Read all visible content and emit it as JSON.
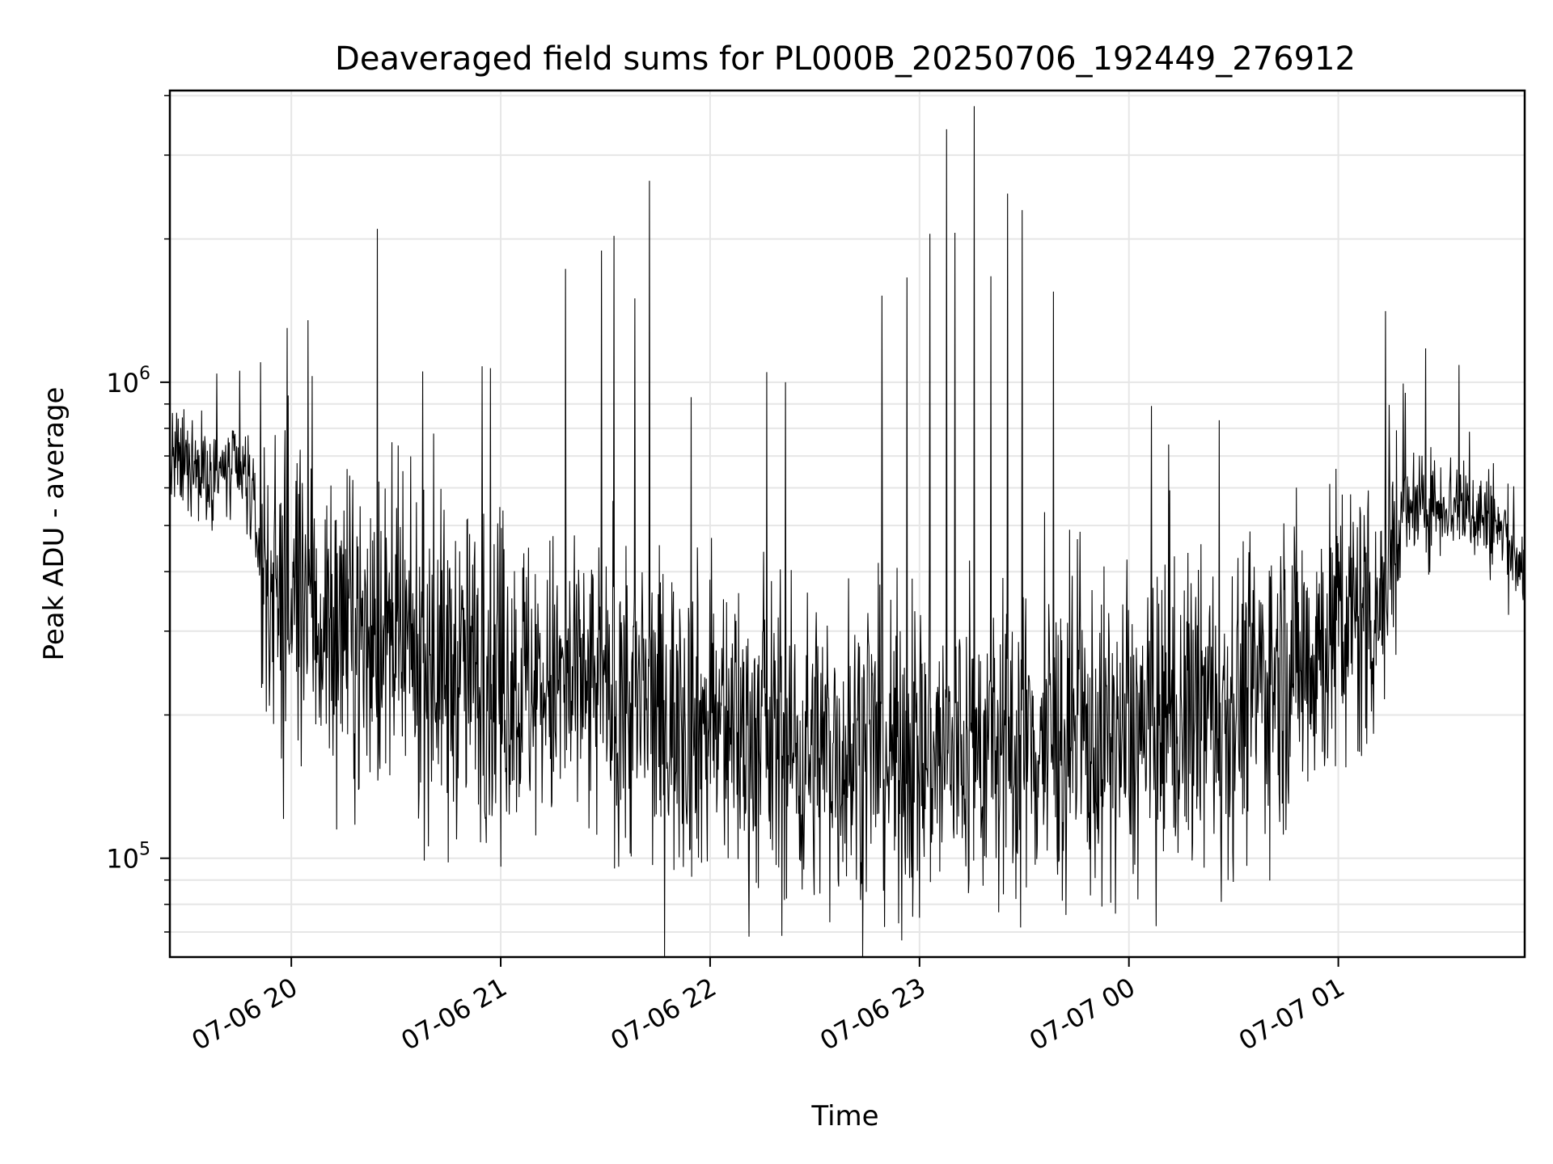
{
  "chart_data": {
    "type": "line",
    "title": "Deaveraged field sums for PL000B_20250706_192449_276912",
    "xlabel": "Time",
    "ylabel": "Peak ADU - average",
    "x_tick_labels": [
      "07-06 20",
      "07-06 21",
      "07-06 22",
      "07-06 23",
      "07-07 00",
      "07-07 01"
    ],
    "x_tick_hours": [
      20,
      21,
      22,
      23,
      24,
      25
    ],
    "x_range_hours": [
      19.42,
      25.89
    ],
    "y_scale": "log",
    "y_range": [
      62000,
      4100000
    ],
    "y_major_ticks": [
      {
        "value": 100000,
        "base": "10",
        "exp": "5"
      },
      {
        "value": 1000000,
        "base": "10",
        "exp": "6"
      }
    ],
    "grid": true,
    "line_color": "#000000",
    "series": [
      {
        "x_hours": [
          19.42,
          19.5,
          19.6,
          19.7,
          19.8,
          19.85,
          19.9,
          20.0,
          20.1,
          20.2,
          20.3,
          20.4,
          20.5,
          20.6,
          20.7,
          20.8,
          20.9,
          21.0,
          21.1,
          21.2,
          21.3,
          21.4,
          21.5,
          21.6,
          21.7,
          21.8,
          21.9,
          22.0,
          22.1,
          22.2,
          22.3,
          22.4,
          22.5,
          22.6,
          22.7,
          22.8,
          22.9,
          23.0,
          23.1,
          23.2,
          23.3,
          23.4,
          23.5,
          23.6,
          23.7,
          23.8,
          23.9,
          24.0,
          24.1,
          24.2,
          24.3,
          24.4,
          24.5,
          24.6,
          24.7,
          24.8,
          24.9,
          25.0,
          25.1,
          25.2,
          25.3,
          25.4,
          25.5,
          25.6,
          25.7,
          25.8,
          25.89
        ],
        "y_typical": [
          680000,
          660000,
          650000,
          640000,
          620000,
          430000,
          380000,
          340000,
          320000,
          300000,
          300000,
          280000,
          270000,
          260000,
          255000,
          250000,
          245000,
          240000,
          235000,
          230000,
          225000,
          220000,
          215000,
          210000,
          205000,
          200000,
          195000,
          190000,
          185000,
          180000,
          175000,
          172000,
          170000,
          168000,
          166000,
          165000,
          165000,
          165000,
          165000,
          165000,
          168000,
          170000,
          172000,
          175000,
          175000,
          175000,
          175000,
          178000,
          180000,
          185000,
          195000,
          205000,
          215000,
          230000,
          245000,
          260000,
          280000,
          300000,
          320000,
          350000,
          520000,
          540000,
          560000,
          550000,
          520000,
          470000,
          410000
        ],
        "spikes": [
          {
            "x_hour": 19.98,
            "y": 1300000
          },
          {
            "x_hour": 20.08,
            "y": 1350000
          },
          {
            "x_hour": 20.1,
            "y": 1030000
          },
          {
            "x_hour": 20.41,
            "y": 2100000
          },
          {
            "x_hour": 20.68,
            "y": 780000
          },
          {
            "x_hour": 20.91,
            "y": 1080000
          },
          {
            "x_hour": 20.95,
            "y": 1070000
          },
          {
            "x_hour": 21.31,
            "y": 1730000
          },
          {
            "x_hour": 21.48,
            "y": 1890000
          },
          {
            "x_hour": 21.54,
            "y": 2030000
          },
          {
            "x_hour": 21.64,
            "y": 1500000
          },
          {
            "x_hour": 21.71,
            "y": 2650000
          },
          {
            "x_hour": 21.91,
            "y": 930000
          },
          {
            "x_hour": 22.27,
            "y": 1050000
          },
          {
            "x_hour": 22.36,
            "y": 1000000
          },
          {
            "x_hour": 22.82,
            "y": 1520000
          },
          {
            "x_hour": 22.94,
            "y": 1660000
          },
          {
            "x_hour": 23.05,
            "y": 2050000
          },
          {
            "x_hour": 23.13,
            "y": 3400000
          },
          {
            "x_hour": 23.17,
            "y": 2060000
          },
          {
            "x_hour": 23.26,
            "y": 3800000
          },
          {
            "x_hour": 23.34,
            "y": 1670000
          },
          {
            "x_hour": 23.42,
            "y": 2490000
          },
          {
            "x_hour": 23.49,
            "y": 2300000
          },
          {
            "x_hour": 23.64,
            "y": 1550000
          },
          {
            "x_hour": 24.19,
            "y": 740000
          },
          {
            "x_hour": 25.32,
            "y": 950000
          }
        ],
        "dips": [
          {
            "x_hour": 19.96,
            "y": 215000
          },
          {
            "x_hour": 20.75,
            "y": 98000
          },
          {
            "x_hour": 21.0,
            "y": 96000
          },
          {
            "x_hour": 22.44,
            "y": 86000
          },
          {
            "x_hour": 22.9,
            "y": 73000
          },
          {
            "x_hour": 23.0,
            "y": 75000
          },
          {
            "x_hour": 23.4,
            "y": 84000
          },
          {
            "x_hour": 23.7,
            "y": 76000
          },
          {
            "x_hour": 24.13,
            "y": 72000
          },
          {
            "x_hour": 24.44,
            "y": 81000
          }
        ]
      }
    ]
  }
}
